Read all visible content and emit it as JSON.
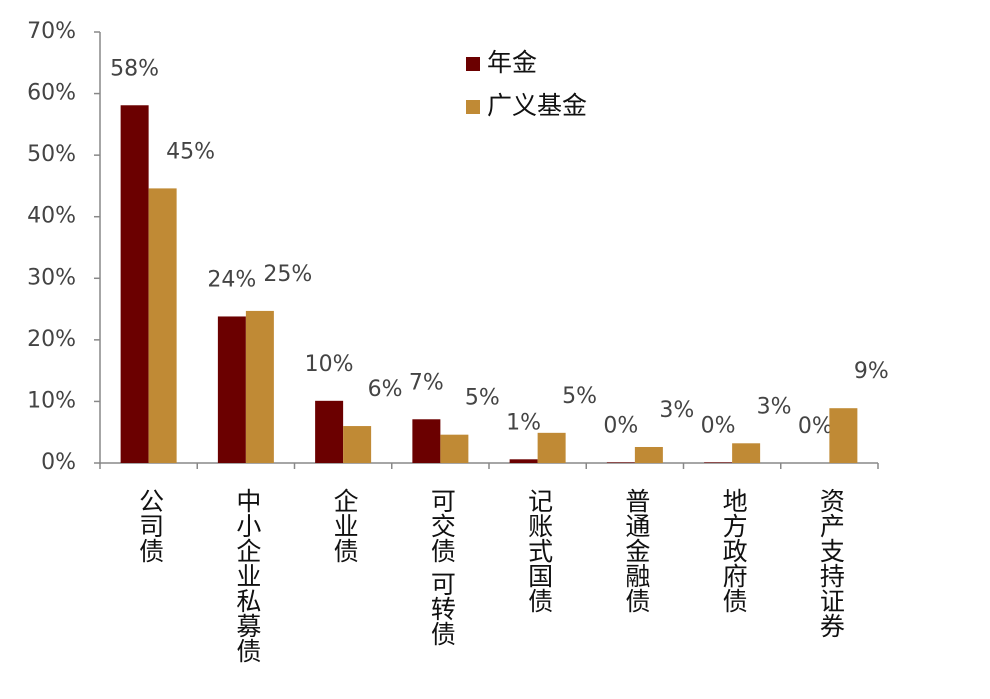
{
  "chart_data": {
    "type": "bar",
    "categories": [
      "公司债",
      "中小企业私募债",
      "企业债",
      "可交债 可转债",
      "记账式国债",
      "普通金融债",
      "地方政府债",
      "资产支持证券"
    ],
    "series": [
      {
        "name": "年金",
        "color": "#6b0000",
        "values": [
          58.1,
          23.8,
          10.1,
          7.1,
          0.6,
          0.1,
          0.1,
          0
        ],
        "value_labels": [
          "58%",
          "24%",
          "10%",
          "7%",
          "1%",
          "0%",
          "0%",
          "0%"
        ]
      },
      {
        "name": "广义基金",
        "color": "#c08a35",
        "values": [
          44.6,
          24.7,
          6.0,
          4.6,
          4.9,
          2.6,
          3.2,
          8.9
        ],
        "value_labels": [
          "45%",
          "25%",
          "6%",
          "5%",
          "5%",
          "3%",
          "3%",
          "9%"
        ]
      }
    ],
    "ylim": [
      0,
      70
    ],
    "yticks": [
      {
        "value": 0,
        "label": "0%"
      },
      {
        "value": 10,
        "label": "10%"
      },
      {
        "value": 20,
        "label": "20%"
      },
      {
        "value": 30,
        "label": "30%"
      },
      {
        "value": 40,
        "label": "40%"
      },
      {
        "value": 50,
        "label": "50%"
      },
      {
        "value": 60,
        "label": "60%"
      },
      {
        "value": 70,
        "label": "70%"
      }
    ]
  }
}
